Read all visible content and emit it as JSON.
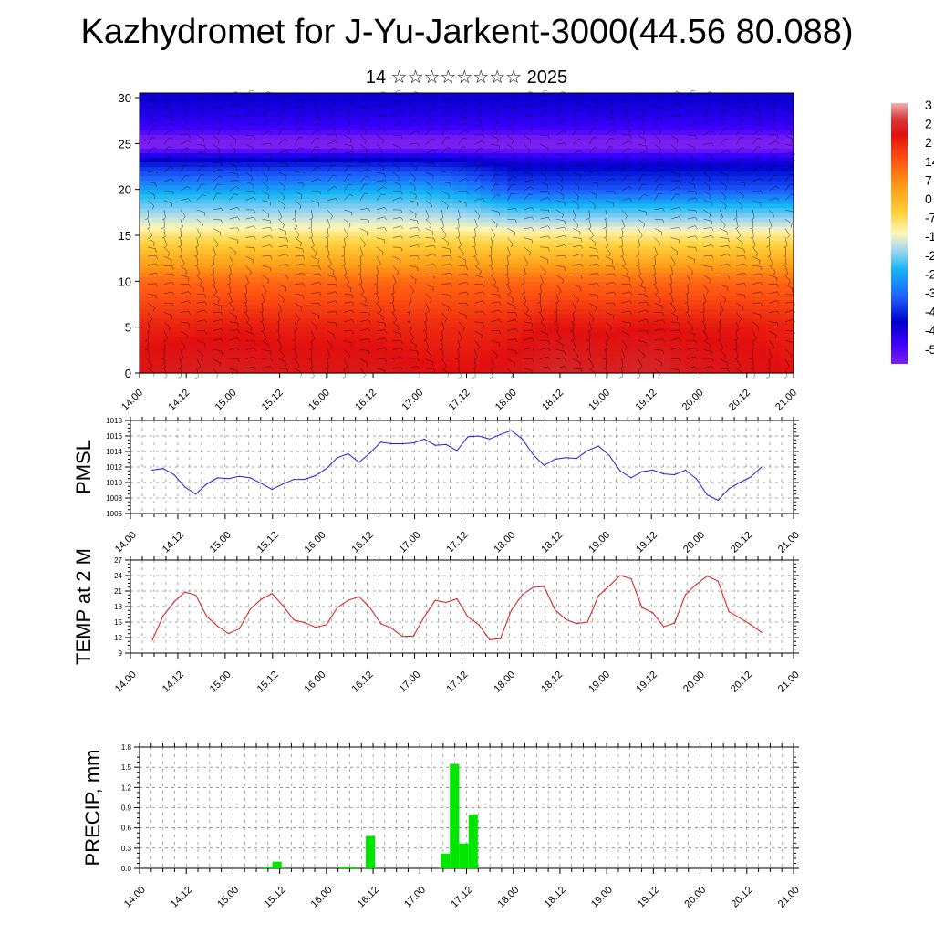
{
  "title": "Kazhydromet for J-Yu-Jarkent-3000(44.56 80.088)",
  "date_line": "14 ☆☆☆☆☆☆☆☆ 2025",
  "colors": {
    "pmsl_line": "#1f1fe0",
    "temp_line": "#e01414",
    "precip_bar": "#00e600",
    "wind_barb": "#000000"
  },
  "chart_data": [
    {
      "type": "heatmap",
      "title": "",
      "xlabel": "",
      "ylabel": "",
      "x_tick_labels": [
        "14.00",
        "14.12",
        "15.00",
        "15.12",
        "16.00",
        "16.12",
        "17.00",
        "17.12",
        "18.00",
        "18.12",
        "19.00",
        "19.12",
        "20.00",
        "20.12",
        "21.00"
      ],
      "y_ticks": [
        0,
        5,
        10,
        15,
        20,
        25,
        30
      ],
      "ylim": [
        0,
        30.5
      ],
      "colorbar_labels": [
        "3",
        "2",
        "2",
        "14",
        "7",
        "0",
        "-7",
        "-1",
        "-2",
        "-2",
        "-3",
        "-4",
        "-4",
        "-5"
      ],
      "colorbar_range": [
        -56,
        35
      ],
      "description_of_field": "temperature by level with wind barbs overlaid",
      "level_temperatures": [
        {
          "level": 0,
          "values": [
            24,
            27,
            26,
            25,
            25,
            25,
            23,
            22,
            24,
            29,
            27,
            29,
            25,
            24,
            22
          ]
        },
        {
          "level": 5,
          "values": [
            20,
            20,
            21,
            20,
            20,
            20,
            19,
            19,
            20,
            22,
            21,
            22,
            21,
            21,
            20
          ]
        },
        {
          "level": 10,
          "values": [
            12,
            12,
            12,
            12,
            12,
            12,
            12,
            12,
            12,
            12,
            12,
            12,
            12,
            12,
            12
          ]
        },
        {
          "level": 15,
          "values": [
            -5,
            -5,
            -5,
            -5,
            -5,
            -5,
            -5,
            -5,
            -6,
            -6,
            -6,
            -6,
            -6,
            -6,
            -6
          ]
        },
        {
          "level": 20,
          "values": [
            -28,
            -28,
            -28,
            -28,
            -27,
            -27,
            -27,
            -30,
            -36,
            -36,
            -36,
            -36,
            -36,
            -36,
            -36
          ]
        },
        {
          "level": 25,
          "values": [
            -52,
            -52,
            -52,
            -52,
            -52,
            -52,
            -52,
            -52,
            -52,
            -52,
            -52,
            -52,
            -52,
            -52,
            -52
          ]
        },
        {
          "level": 30,
          "values": [
            -45,
            -45,
            -45,
            -45,
            -45,
            -45,
            -45,
            -45,
            -45,
            -45,
            -45,
            -45,
            -45,
            -45,
            -45
          ]
        }
      ]
    },
    {
      "type": "line",
      "title": "",
      "xlabel": "",
      "ylabel": "PMSL",
      "ylim": [
        1006,
        1018
      ],
      "y_ticks": [
        1006,
        1008,
        1010,
        1012,
        1014,
        1016,
        1018
      ],
      "x_tick_labels": [
        "14.00",
        "14.12",
        "15.00",
        "15.12",
        "16.00",
        "16.12",
        "17.00",
        "17.12",
        "18.00",
        "18.12",
        "19.00",
        "19.12",
        "20.00",
        "20.12",
        "21.00"
      ],
      "series": [
        {
          "values": [
            1011.6,
            1011.8,
            1011.0,
            1009.4,
            1008.5,
            1009.8,
            1010.6,
            1010.5,
            1010.8,
            1010.6,
            1009.9,
            1009.1,
            1009.8,
            1010.4,
            1010.4,
            1010.9,
            1011.8,
            1013.2,
            1013.7,
            1012.6,
            1013.8,
            1015.2,
            1015.0,
            1015.0,
            1015.1,
            1015.6,
            1014.8,
            1014.9,
            1014.1,
            1015.9,
            1016.0,
            1015.6,
            1016.2,
            1016.7,
            1015.6,
            1013.6,
            1012.2,
            1013.0,
            1013.2,
            1013.1,
            1014.1,
            1014.7,
            1013.5,
            1011.5,
            1010.6,
            1011.4,
            1011.6,
            1011.1,
            1011.0,
            1011.6,
            1010.5,
            1008.4,
            1007.7,
            1009.2,
            1010.0,
            1010.7,
            1012.0
          ]
        }
      ]
    },
    {
      "type": "line",
      "title": "",
      "xlabel": "",
      "ylabel": "TEMP at 2 M",
      "ylim": [
        9,
        27
      ],
      "y_ticks": [
        9,
        12,
        15,
        18,
        21,
        24,
        27
      ],
      "x_tick_labels": [
        "14.00",
        "14.12",
        "15.00",
        "15.12",
        "16.00",
        "16.12",
        "17.00",
        "17.12",
        "18.00",
        "18.12",
        "19.00",
        "19.12",
        "20.00",
        "20.12",
        "21.00"
      ],
      "series": [
        {
          "values": [
            11.5,
            16.2,
            18.9,
            20.8,
            20.2,
            16.1,
            14.2,
            12.8,
            13.7,
            17.5,
            19.4,
            20.5,
            18.2,
            15.4,
            14.9,
            14.0,
            14.5,
            17.8,
            19.2,
            19.9,
            17.8,
            14.7,
            13.8,
            12.2,
            12.3,
            16.0,
            19.2,
            18.8,
            19.5,
            16.0,
            14.5,
            11.6,
            11.8,
            17.3,
            20.3,
            21.7,
            21.9,
            17.4,
            15.5,
            14.7,
            15.0,
            20.1,
            22.0,
            24.0,
            23.4,
            17.8,
            16.8,
            14.1,
            14.8,
            20.3,
            22.3,
            23.9,
            22.9,
            17.0,
            15.8,
            14.5,
            13.0
          ]
        }
      ]
    },
    {
      "type": "bar",
      "title": "",
      "xlabel": "",
      "ylabel": "PRECIP, mm",
      "ylim": [
        0,
        1.8
      ],
      "y_ticks_labels": [
        "0.0",
        "0.3",
        "0.6",
        "0.9",
        "1.2",
        "1.5",
        "1.8"
      ],
      "x_tick_labels": [
        "14.00",
        "14.12",
        "15.00",
        "15.12",
        "16.00",
        "16.12",
        "17.00",
        "17.12",
        "18.00",
        "18.12",
        "19.00",
        "19.12",
        "20.00",
        "20.12",
        "21.00"
      ],
      "series": [
        {
          "values": [
            0,
            0,
            0,
            0,
            0,
            0,
            0,
            0,
            0,
            0,
            0,
            0,
            0,
            0.02,
            0.1,
            0,
            0,
            0,
            0,
            0,
            0,
            0.02,
            0.02,
            0,
            0.48,
            0,
            0,
            0,
            0,
            0,
            0,
            0,
            0.22,
            1.55,
            0.37,
            0.8,
            0,
            0,
            0,
            0,
            0,
            0,
            0,
            0,
            0,
            0,
            0,
            0,
            0,
            0,
            0,
            0,
            0,
            0,
            0,
            0,
            0,
            0,
            0,
            0,
            0,
            0,
            0,
            0,
            0,
            0,
            0,
            0,
            0,
            0
          ]
        }
      ]
    }
  ]
}
